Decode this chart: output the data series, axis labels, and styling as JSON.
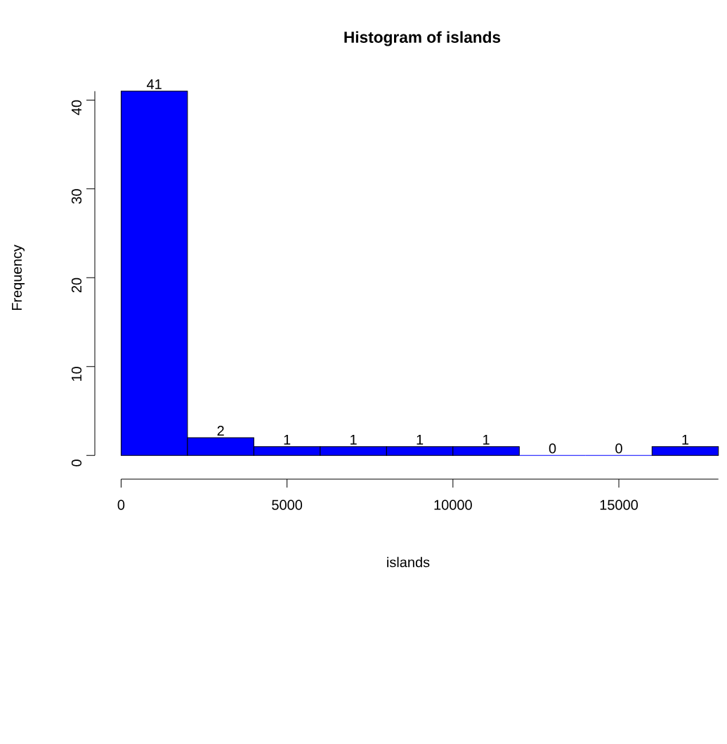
{
  "chart_data": {
    "type": "histogram",
    "title": "Histogram of islands",
    "xlabel": "islands",
    "ylabel": "Frequency",
    "bins": [
      0,
      2000,
      4000,
      6000,
      8000,
      10000,
      12000,
      14000,
      16000,
      18000
    ],
    "values": [
      41,
      2,
      1,
      1,
      1,
      1,
      0,
      0,
      1
    ],
    "color": "#0000ff",
    "data_labels": true,
    "xlim": [
      0,
      18000
    ],
    "ylim": [
      0,
      41
    ],
    "xticks": [
      0,
      5000,
      10000,
      15000
    ],
    "yticks": [
      0,
      10,
      20,
      30,
      40
    ]
  }
}
